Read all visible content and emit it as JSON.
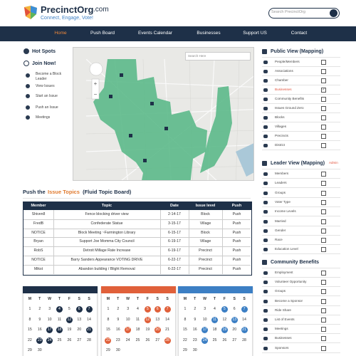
{
  "header": {
    "logo": "PrecinctOrg",
    "logo_suffix": ".com",
    "tagline": "Connect, Engage, Vote!",
    "search_placeholder": "Search PrecinctOrg"
  },
  "nav": [
    {
      "label": "Home",
      "active": true
    },
    {
      "label": "Push Board",
      "active": false
    },
    {
      "label": "Events Calendar",
      "active": false
    },
    {
      "label": "Businesses",
      "active": false
    },
    {
      "label": "Support US",
      "active": false
    },
    {
      "label": "Contact",
      "active": false
    }
  ],
  "sidebar": {
    "hot_spots": "Hot Spots",
    "join": "Join Now!",
    "links": [
      "Become a Block\nLeader",
      "View Issues",
      "Start an Issue",
      "Push an Issue",
      "Meetings"
    ]
  },
  "map": {
    "search_placeholder": "Search Here"
  },
  "public_view": {
    "title": "Public View (Mapping)",
    "items": [
      {
        "label": "People/Members",
        "checked": false
      },
      {
        "label": "Associations",
        "checked": false
      },
      {
        "label": "Chamber",
        "checked": false
      },
      {
        "label": "Businesses",
        "checked": true
      },
      {
        "label": "Community Benefits",
        "checked": false
      },
      {
        "label": "Issues Ground Zero",
        "checked": false
      },
      {
        "label": "Blocks",
        "checked": false
      },
      {
        "label": "Villages",
        "checked": false
      },
      {
        "label": "Precincts",
        "checked": false
      },
      {
        "label": "District",
        "checked": false
      }
    ]
  },
  "leader_view": {
    "title": "Leader View (Mapping)",
    "badge": "Admin",
    "items": [
      {
        "label": "Members",
        "checked": false
      },
      {
        "label": "Leaders",
        "checked": false
      },
      {
        "label": "Groups",
        "checked": false
      },
      {
        "label": "Voter Type",
        "checked": false
      },
      {
        "label": "Income Levels",
        "checked": false
      },
      {
        "label": "Married",
        "checked": false
      },
      {
        "label": "Gender",
        "checked": false
      },
      {
        "label": "Race",
        "checked": false
      },
      {
        "label": "Education Level",
        "checked": false
      }
    ]
  },
  "community_benefits": {
    "title": "Community Benefits",
    "items": [
      {
        "label": "Employment",
        "checked": false
      },
      {
        "label": "Volunteer Opportunity",
        "checked": false
      },
      {
        "label": "Groups",
        "checked": false
      },
      {
        "label": "Become a Sponsor",
        "checked": false
      },
      {
        "label": "Ride Share",
        "checked": false
      },
      {
        "label": "List of Events",
        "checked": false
      },
      {
        "label": "Meetings",
        "checked": false
      },
      {
        "label": "Businesses",
        "checked": false
      },
      {
        "label": "Sponsors",
        "checked": false
      }
    ]
  },
  "topic_board": {
    "title_start": "Push the ",
    "title_highlight": "Issue Topics",
    "title_end": " (Fluid Topic Board)",
    "columns": [
      "Member",
      "Topic",
      "Date",
      "Issue level",
      "Push"
    ],
    "rows": [
      [
        "Shiven8",
        "Fence blocking driver view",
        "2-14-17",
        "Block",
        "Push"
      ],
      [
        "FredB",
        "Confederate Statue",
        "3-15-17",
        "Village",
        "Push"
      ],
      [
        "NOTICE",
        "Block Meeting ~Farmington Library",
        "6-15-17",
        "Block",
        "Push"
      ],
      [
        "Bryan",
        "Support Joe Momma City Council",
        "6-19-17",
        "Village",
        "Push"
      ],
      [
        "RobS",
        "Detroit Millage Rate Increase",
        "6-19-17",
        "Precinct",
        "Push"
      ],
      [
        "NOTICE",
        "Barry Sanders Appearance VOTING DRIVE",
        "6-22-17",
        "Precinct",
        "Push"
      ],
      [
        "Mikst",
        "Abandon building / Blight Removal",
        "6-22-17",
        "Precinct",
        "Push"
      ]
    ]
  },
  "calendars": {
    "weekdays": [
      "M",
      "T",
      "W",
      "T",
      "F",
      "S",
      "S"
    ],
    "weeks": [
      [
        1,
        2,
        3,
        4,
        5,
        6,
        7
      ],
      [
        8,
        9,
        10,
        11,
        12,
        13,
        14
      ],
      [
        15,
        16,
        17,
        18,
        19,
        20,
        21
      ],
      [
        22,
        23,
        24,
        25,
        26,
        27,
        28
      ],
      [
        29,
        30
      ]
    ],
    "months": [
      {
        "color": "#1e3048",
        "highlighted": [
          4,
          6,
          7,
          12,
          17,
          18,
          21,
          23,
          24
        ]
      },
      {
        "color": "#e0603a",
        "highlighted": [
          5,
          6,
          7,
          12,
          17,
          20,
          22,
          28
        ]
      },
      {
        "color": "#3c7fc4",
        "highlighted": [
          5,
          7,
          11,
          13,
          17,
          19,
          21,
          24
        ]
      }
    ]
  }
}
